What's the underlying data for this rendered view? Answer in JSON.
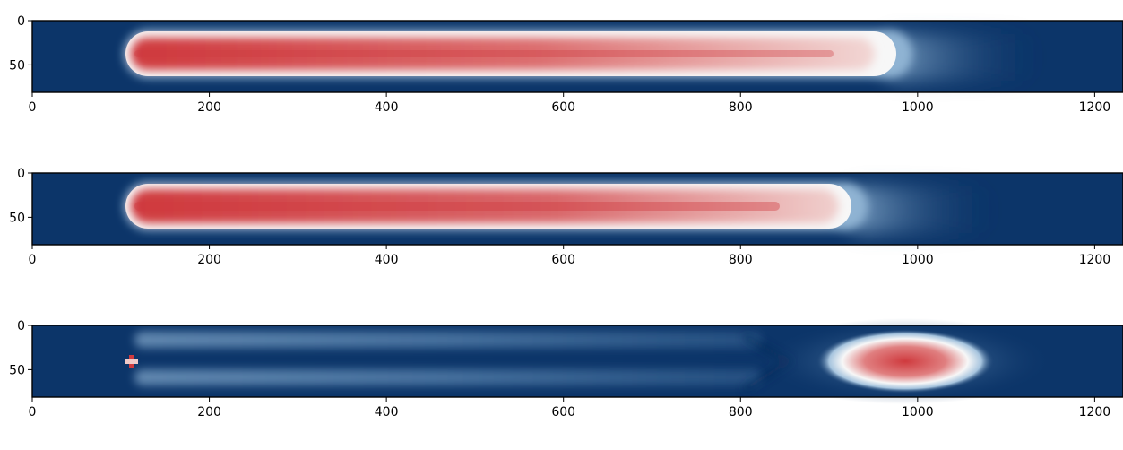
{
  "chart_data": [
    {
      "type": "heatmap",
      "title": "",
      "xlabel": "",
      "ylabel": "",
      "x_range": [
        0,
        1230
      ],
      "y_range": [
        0,
        80
      ],
      "y_inverted": true,
      "xticks": [
        0,
        200,
        400,
        600,
        800,
        1000,
        1200
      ],
      "yticks": [
        0,
        50
      ],
      "colormap": {
        "low": "#0c3569",
        "mid": "#f7f7f7",
        "high": "#cf3a3e"
      },
      "features": [
        {
          "kind": "capsule",
          "x_start": 110,
          "x_end": 1010,
          "y_center": 40,
          "half_width": 25,
          "intensity_start": 0.95,
          "intensity_end": 0.35
        }
      ]
    },
    {
      "type": "heatmap",
      "title": "",
      "xlabel": "",
      "ylabel": "",
      "x_range": [
        0,
        1230
      ],
      "y_range": [
        0,
        80
      ],
      "y_inverted": true,
      "xticks": [
        0,
        200,
        400,
        600,
        800,
        1000,
        1200
      ],
      "yticks": [
        0,
        50
      ],
      "colormap": {
        "low": "#0c3569",
        "mid": "#f7f7f7",
        "high": "#cf3a3e"
      },
      "features": [
        {
          "kind": "capsule",
          "x_start": 110,
          "x_end": 960,
          "y_center": 40,
          "half_width": 25,
          "intensity_start": 1.0,
          "intensity_end": 0.4
        }
      ]
    },
    {
      "type": "heatmap",
      "title": "",
      "xlabel": "",
      "ylabel": "",
      "x_range": [
        0,
        1230
      ],
      "y_range": [
        0,
        80
      ],
      "y_inverted": true,
      "xticks": [
        0,
        200,
        400,
        600,
        800,
        1000,
        1200
      ],
      "yticks": [
        0,
        50
      ],
      "colormap": {
        "low": "#0c3569",
        "mid": "#f7f7f7",
        "high": "#cf3a3e"
      },
      "features": [
        {
          "kind": "band",
          "x_start": 115,
          "x_end": 830,
          "y_center": 20,
          "intensity": 0.28
        },
        {
          "kind": "band",
          "x_start": 115,
          "x_end": 830,
          "y_center": 60,
          "intensity": 0.28
        },
        {
          "kind": "blob",
          "x_center": 990,
          "y_center": 40,
          "x_radius": 75,
          "y_radius": 26,
          "intensity": 0.85
        },
        {
          "kind": "spot",
          "x_center": 110,
          "y_center": 40,
          "intensity": 0.9
        }
      ]
    }
  ]
}
